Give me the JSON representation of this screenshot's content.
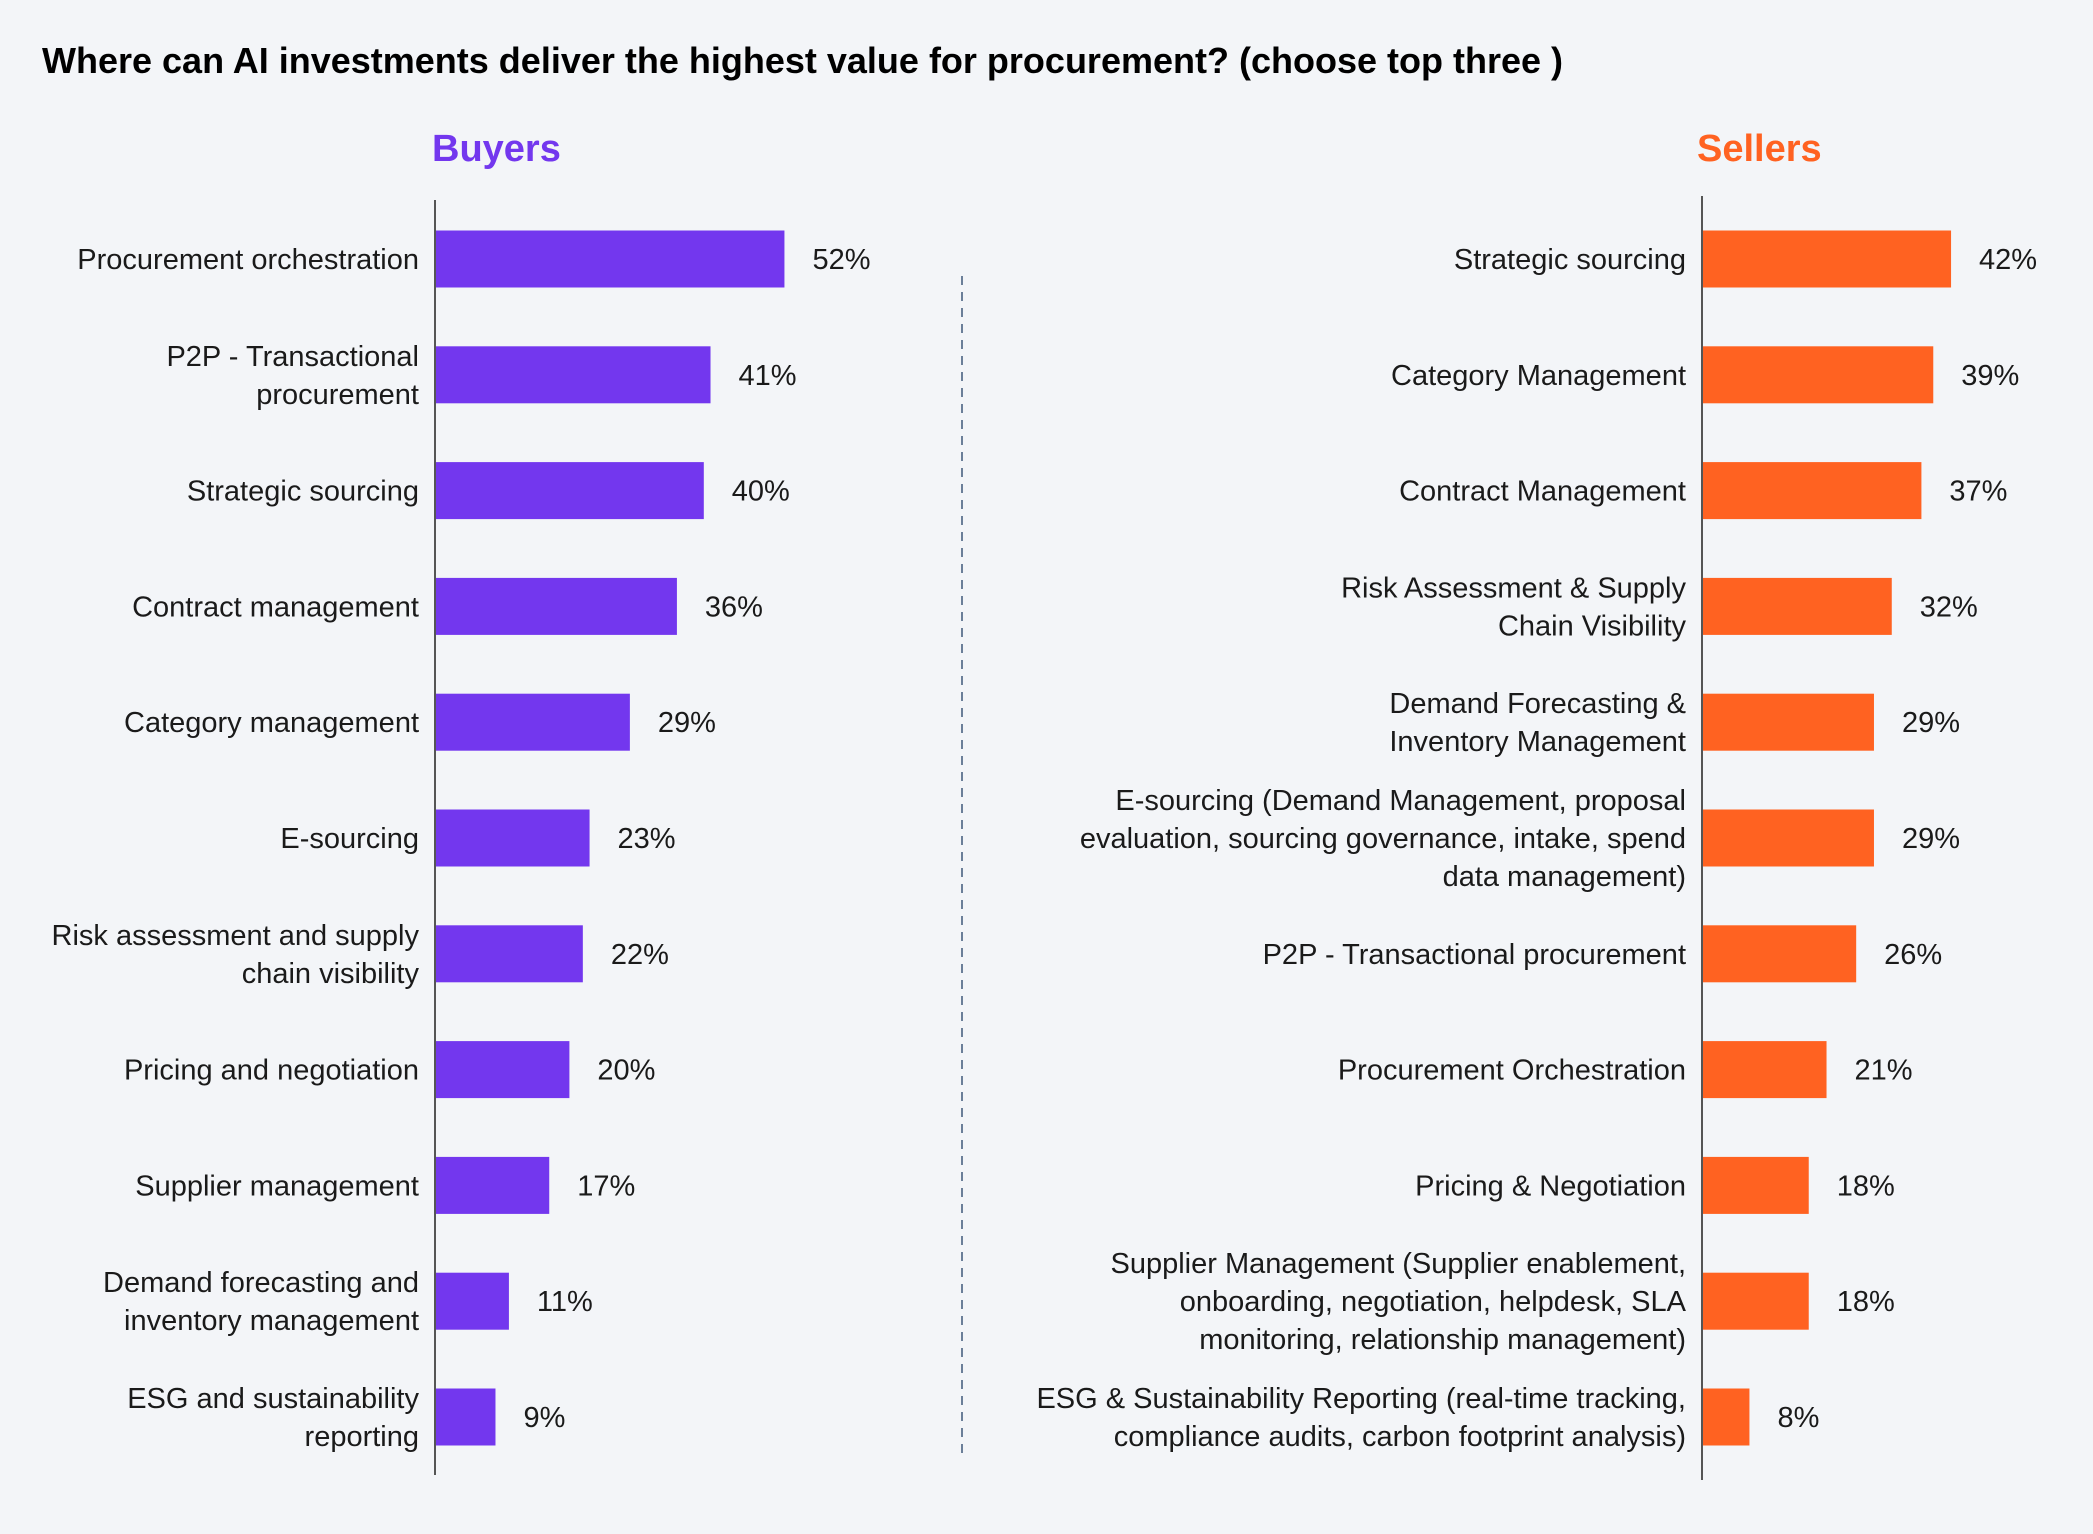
{
  "title": "Where can AI investments deliver the highest value for procurement? (choose top three )",
  "chart_data": [
    {
      "type": "bar",
      "orientation": "horizontal",
      "title": "Buyers",
      "color": "#7337ee",
      "unit": "%",
      "categories": [
        "Procurement orchestration",
        "P2P - Transactional\nprocurement",
        "Strategic sourcing",
        "Contract management",
        "Category management",
        "E-sourcing",
        "Risk assessment and supply\nchain visibility",
        "Pricing and negotiation",
        "Supplier management",
        "Demand forecasting and\ninventory management",
        "ESG and sustainability\nreporting"
      ],
      "values": [
        52,
        41,
        40,
        36,
        29,
        23,
        22,
        20,
        17,
        11,
        9
      ],
      "labels": [
        "52%",
        "41%",
        "40%",
        "36%",
        "29%",
        "23%",
        "22%",
        "20%",
        "17%",
        "11%",
        "9%"
      ]
    },
    {
      "type": "bar",
      "orientation": "horizontal",
      "title": "Sellers",
      "color": "#ff6221",
      "unit": "%",
      "categories": [
        "Strategic sourcing",
        "Category Management",
        "Contract Management",
        "Risk Assessment & Supply\nChain Visibility",
        "Demand Forecasting &\nInventory Management",
        "E-sourcing (Demand Management, proposal\nevaluation, sourcing governance, intake, spend\ndata management)",
        "P2P - Transactional procurement",
        "Procurement Orchestration",
        "Pricing & Negotiation",
        "Supplier Management (Supplier enablement,\nonboarding, negotiation, helpdesk, SLA\nmonitoring, relationship management)",
        "ESG & Sustainability Reporting (real-time tracking,\ncompliance audits, carbon footprint analysis)"
      ],
      "values": [
        42,
        39,
        37,
        32,
        29,
        29,
        26,
        21,
        18,
        18,
        8
      ],
      "labels": [
        "42%",
        "39%",
        "37%",
        "32%",
        "29%",
        "29%",
        "26%",
        "21%",
        "18%",
        "18%",
        "8%"
      ]
    }
  ]
}
